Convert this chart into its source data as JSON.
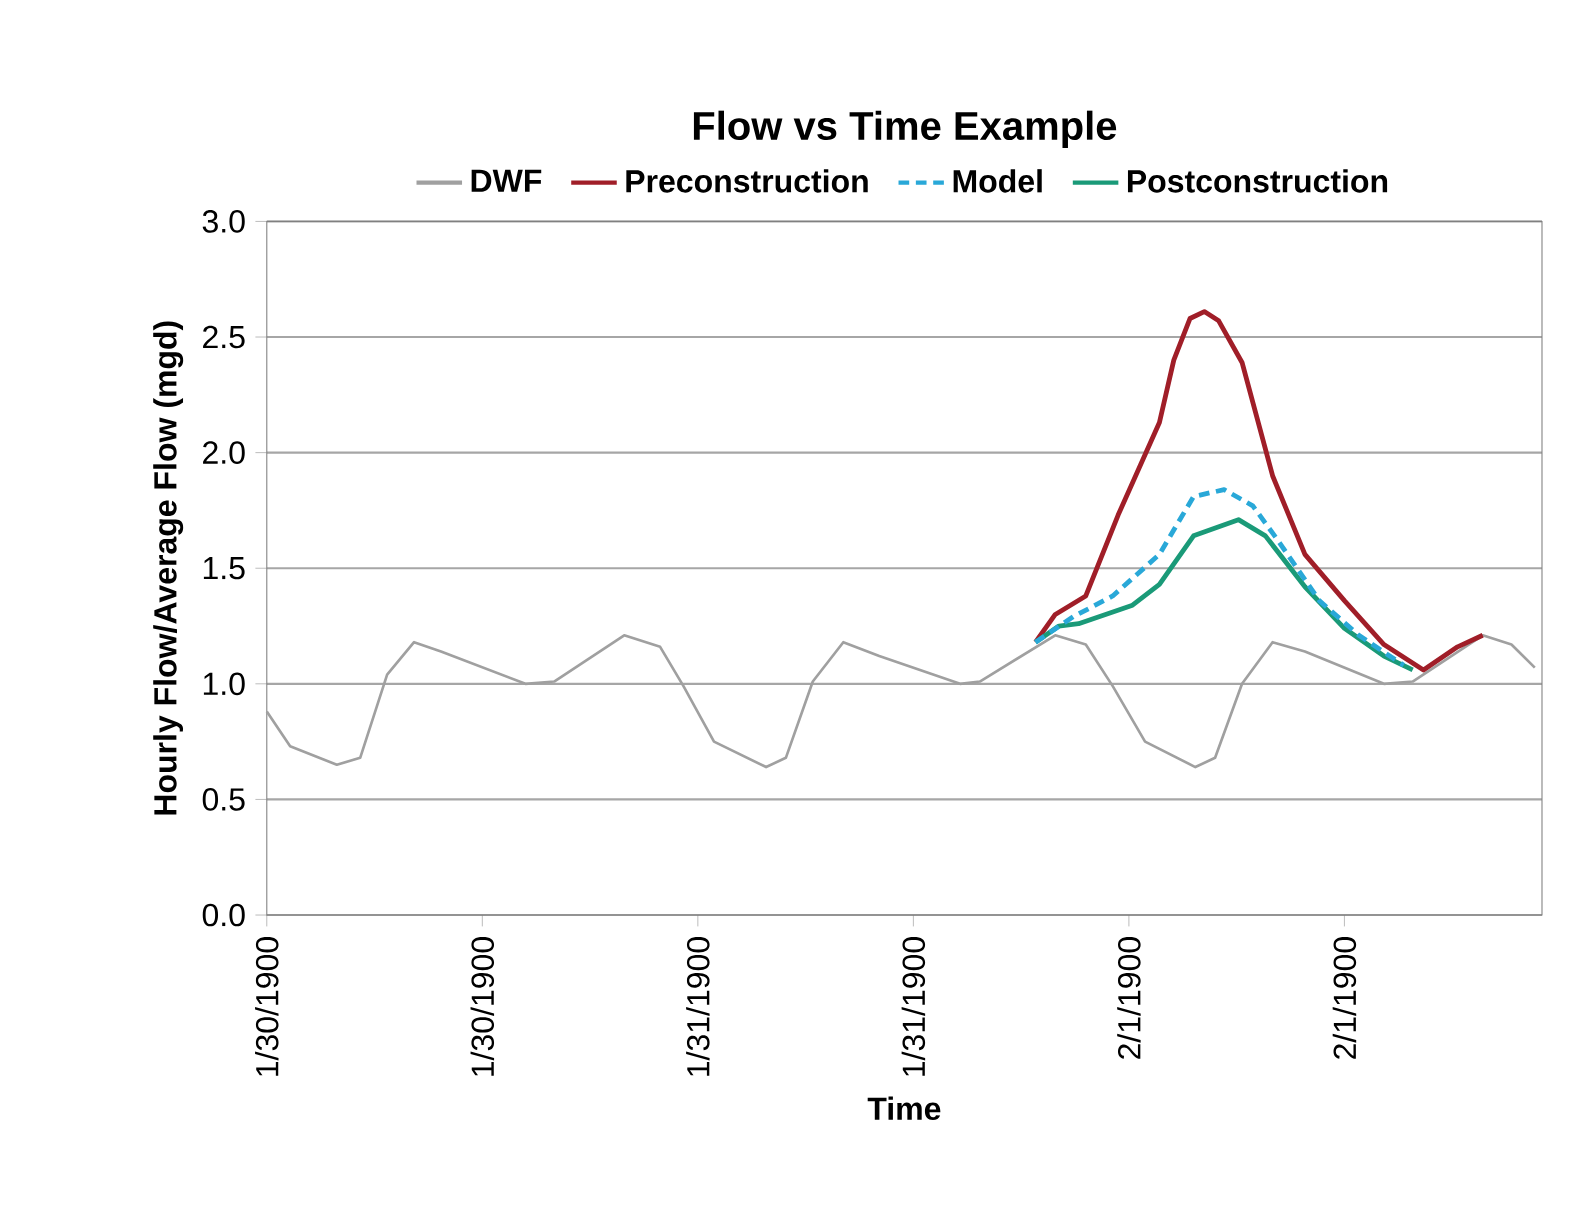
{
  "chart_data": {
    "type": "line",
    "title": "Flow vs Time Example",
    "xlabel": "Time",
    "ylabel": "Hourly Flow/Average Flow (mgd)",
    "xlim": [
      "1900-01-30T00:00",
      "1900-02-01T23:00"
    ],
    "ylim": [
      0,
      3
    ],
    "xticks": [
      {
        "value": "1900-01-30T00:00",
        "label": "1/30/1900"
      },
      {
        "value": "1900-01-30T12:00",
        "label": "1/30/1900"
      },
      {
        "value": "1900-01-31T00:00",
        "label": "1/31/1900"
      },
      {
        "value": "1900-01-31T12:00",
        "label": "1/31/1900"
      },
      {
        "value": "1900-02-01T00:00",
        "label": "2/1/1900"
      },
      {
        "value": "1900-02-01T12:00",
        "label": "2/1/1900"
      }
    ],
    "yticks": [
      {
        "value": 0,
        "label": "0.0"
      },
      {
        "value": 0.5,
        "label": "0.5"
      },
      {
        "value": 1,
        "label": "1.0"
      },
      {
        "value": 1.5,
        "label": "1.5"
      },
      {
        "value": 2,
        "label": "2.0"
      },
      {
        "value": 2.5,
        "label": "2.5"
      },
      {
        "value": 3,
        "label": "3.0"
      }
    ],
    "grid": "y",
    "legend": "top",
    "marker": "none",
    "series": [
      {
        "name": "DWF",
        "color": "#a0a0a0",
        "line_style": "solid",
        "x": [
          "1900-01-30T00:00",
          "1900-01-30T01:18",
          "1900-01-30T03:54",
          "1900-01-30T05:12",
          "1900-01-30T06:42",
          "1900-01-30T08:12",
          "1900-01-30T09:42",
          "1900-01-30T14:24",
          "1900-01-30T16:00",
          "1900-01-30T19:54",
          "1900-01-30T21:54",
          "1900-01-30T23:12",
          "1900-01-31T00:54",
          "1900-01-31T03:48",
          "1900-01-31T04:54",
          "1900-01-31T06:24",
          "1900-01-31T08:06",
          "1900-01-31T10:06",
          "1900-01-31T14:36",
          "1900-01-31T15:42",
          "1900-01-31T19:54",
          "1900-01-31T21:36",
          "1900-01-31T23:06",
          "1900-02-01T00:54",
          "1900-02-01T03:42",
          "1900-02-01T04:48",
          "1900-02-01T06:18",
          "1900-02-01T08:00",
          "1900-02-01T09:48",
          "1900-02-01T14:12",
          "1900-02-01T15:48",
          "1900-02-01T19:42",
          "1900-02-01T21:18",
          "1900-02-01T22:36"
        ],
        "values": [
          0.88,
          0.73,
          0.65,
          0.68,
          1.04,
          1.18,
          1.14,
          1.0,
          1.01,
          1.21,
          1.16,
          0.99,
          0.75,
          0.64,
          0.68,
          1.01,
          1.18,
          1.12,
          1.0,
          1.01,
          1.21,
          1.17,
          0.99,
          0.75,
          0.64,
          0.68,
          1.0,
          1.18,
          1.14,
          1.0,
          1.01,
          1.21,
          1.17,
          1.07
        ]
      },
      {
        "name": "Preconstruction",
        "color": "#a01e28",
        "line_style": "solid",
        "x": [
          "1900-01-31T18:48",
          "1900-01-31T19:54",
          "1900-01-31T21:36",
          "1900-01-31T23:24",
          "1900-02-01T01:42",
          "1900-02-01T02:30",
          "1900-02-01T03:24",
          "1900-02-01T04:12",
          "1900-02-01T05:00",
          "1900-02-01T06:18",
          "1900-02-01T08:00",
          "1900-02-01T09:48",
          "1900-02-01T12:00",
          "1900-02-01T14:12",
          "1900-02-01T16:24",
          "1900-02-01T18:18",
          "1900-02-01T19:42"
        ],
        "values": [
          1.18,
          1.3,
          1.38,
          1.73,
          2.13,
          2.4,
          2.58,
          2.61,
          2.57,
          2.39,
          1.9,
          1.56,
          1.36,
          1.17,
          1.06,
          1.16,
          1.21
        ]
      },
      {
        "name": "Model",
        "color": "#29a8d8",
        "line_style": "dashed",
        "x": [
          "1900-01-31T18:48",
          "1900-01-31T20:54",
          "1900-01-31T23:06",
          "1900-02-01T01:42",
          "1900-02-01T03:36",
          "1900-02-01T05:18",
          "1900-02-01T06:54",
          "1900-02-01T08:18",
          "1900-02-01T10:36",
          "1900-02-01T12:48",
          "1900-02-01T15:18"
        ],
        "values": [
          1.18,
          1.29,
          1.38,
          1.56,
          1.81,
          1.84,
          1.77,
          1.62,
          1.36,
          1.21,
          1.08
        ]
      },
      {
        "name": "Postconstruction",
        "color": "#1a9a78",
        "line_style": "solid",
        "x": [
          "1900-01-31T18:48",
          "1900-01-31T20:06",
          "1900-01-31T21:12",
          "1900-02-01T00:12",
          "1900-02-01T01:42",
          "1900-02-01T03:36",
          "1900-02-01T06:06",
          "1900-02-01T07:36",
          "1900-02-01T09:48",
          "1900-02-01T12:00",
          "1900-02-01T14:12",
          "1900-02-01T15:48"
        ],
        "values": [
          1.18,
          1.25,
          1.26,
          1.34,
          1.43,
          1.64,
          1.71,
          1.64,
          1.42,
          1.24,
          1.12,
          1.06
        ]
      }
    ]
  }
}
